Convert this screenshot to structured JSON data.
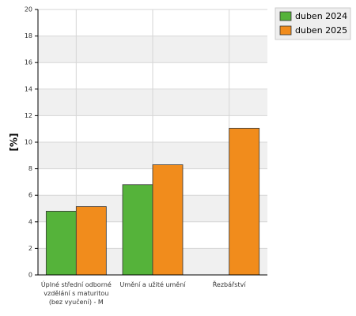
{
  "chart_data": {
    "type": "bar",
    "y_label": "[%]",
    "categories": [
      "Úplné střední odborné vzdělání s maturitou (bez vyučení) - M",
      "Umění a užité umění",
      "Řezbářství"
    ],
    "series": [
      {
        "name": "duben 2024",
        "color": "#55b33a",
        "values": [
          4.8,
          6.8,
          null
        ]
      },
      {
        "name": "duben 2025",
        "color": "#f18c1c",
        "values": [
          5.15,
          8.3,
          11.05
        ]
      }
    ],
    "ylim": [
      0,
      20
    ],
    "yticks": [
      0,
      2,
      4,
      6,
      8,
      10,
      12,
      14,
      16,
      18,
      20
    ],
    "grid": true,
    "legend": "top-right"
  }
}
